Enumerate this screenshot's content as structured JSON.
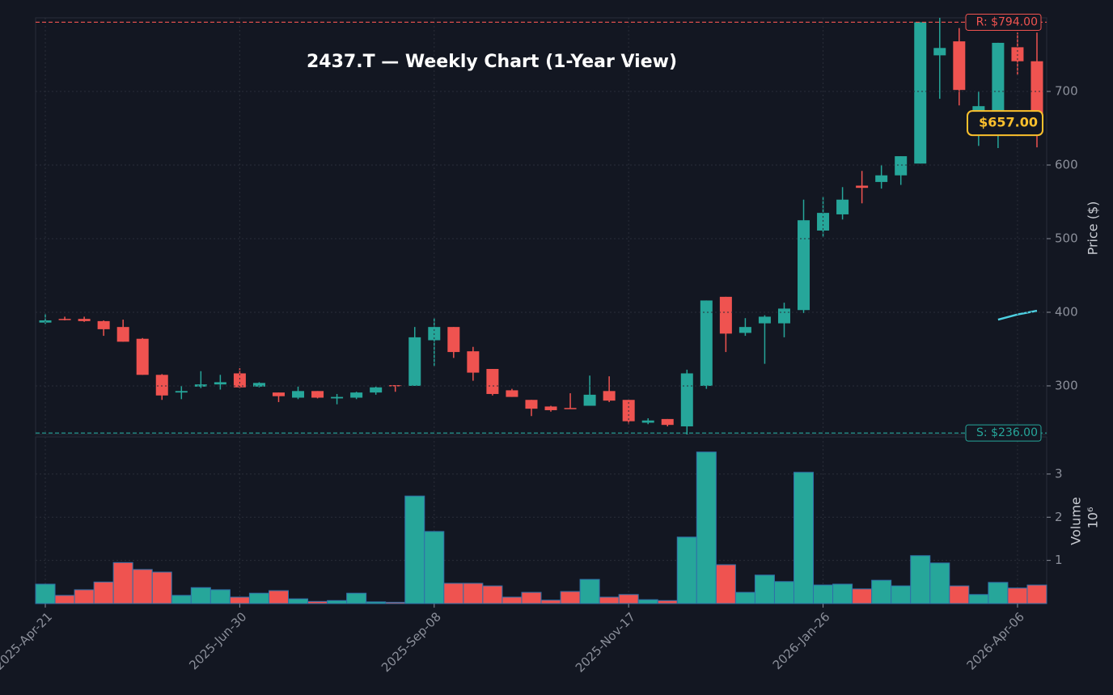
{
  "chart_data": {
    "type": "candlestick",
    "title": "2437.T — Weekly Chart (1-Year View)",
    "categories": [
      "2025-Apr-21",
      null,
      null,
      null,
      null,
      null,
      null,
      null,
      null,
      null,
      "2025-Jun-30",
      null,
      null,
      null,
      null,
      null,
      null,
      null,
      null,
      null,
      "2025-Sep-08",
      null,
      null,
      null,
      null,
      null,
      null,
      null,
      null,
      null,
      "2025-Nov-17",
      null,
      null,
      null,
      null,
      null,
      null,
      null,
      null,
      null,
      "2026-Jan-26",
      null,
      null,
      null,
      null,
      null,
      null,
      null,
      null,
      null,
      "2026-Apr-06",
      null
    ],
    "open": [
      386,
      391,
      391,
      388,
      380,
      364,
      315,
      291,
      299,
      302,
      317,
      299,
      291,
      284,
      293,
      283,
      284,
      291,
      301,
      300,
      362,
      380,
      347,
      323,
      294,
      281,
      272,
      270,
      273,
      293,
      281,
      250,
      255,
      245,
      300,
      421,
      372,
      385,
      385,
      403,
      511,
      533,
      572,
      577,
      586,
      602,
      749,
      768,
      670,
      660,
      760,
      741
    ],
    "high": [
      398,
      394,
      394,
      389,
      390,
      365,
      316,
      300,
      320,
      315,
      324,
      305,
      291,
      299,
      293,
      289,
      292,
      299,
      301,
      380,
      392,
      380,
      353,
      323,
      296,
      281,
      273,
      290,
      314,
      313,
      281,
      256,
      255,
      322,
      416,
      421,
      392,
      396,
      413,
      553,
      557,
      570,
      592,
      600,
      612,
      794,
      800,
      786,
      700,
      766,
      780,
      780
    ],
    "low": [
      384,
      389,
      387,
      368,
      360,
      315,
      281,
      282,
      297,
      295,
      297,
      298,
      278,
      282,
      283,
      275,
      282,
      288,
      292,
      300,
      327,
      338,
      307,
      287,
      285,
      259,
      265,
      269,
      273,
      278,
      248,
      248,
      245,
      234,
      296,
      346,
      368,
      330,
      366,
      399,
      502,
      526,
      548,
      568,
      573,
      602,
      690,
      681,
      626,
      623,
      723,
      624
    ],
    "close": [
      389,
      390,
      388,
      377,
      360,
      315,
      287,
      293,
      302,
      305,
      298,
      304,
      286,
      293,
      284,
      285,
      291,
      298,
      300,
      366,
      380,
      346,
      318,
      289,
      285,
      269,
      267,
      269,
      288,
      280,
      252,
      253,
      247,
      317,
      416,
      371,
      380,
      394,
      405,
      525,
      535,
      553,
      569,
      586,
      612,
      794,
      759,
      702,
      680,
      766,
      741,
      657
    ],
    "up_color": "#26a69a",
    "down_color": "#ef5350",
    "ma": {
      "color": "#4dd0e1",
      "values": [
        null,
        null,
        null,
        null,
        null,
        null,
        null,
        null,
        null,
        null,
        null,
        null,
        null,
        null,
        null,
        null,
        null,
        null,
        null,
        null,
        null,
        null,
        null,
        null,
        null,
        null,
        null,
        null,
        null,
        null,
        null,
        null,
        null,
        null,
        null,
        null,
        null,
        null,
        null,
        null,
        null,
        null,
        null,
        null,
        null,
        null,
        null,
        null,
        null,
        390,
        397,
        402
      ]
    },
    "ylim": [
      234,
      800
    ],
    "yticks": [
      300,
      400,
      500,
      600,
      700
    ],
    "ylabel": "Price ($)",
    "grid": true,
    "levels": [
      {
        "value": 794,
        "label": "R: $794.00",
        "color": "#ef5350"
      },
      {
        "value": 236,
        "label": "S: $236.00",
        "color": "#26a69a"
      }
    ],
    "last": {
      "value": 657,
      "label": "$657.00",
      "color": "#fbc02d"
    },
    "volume": {
      "values": [
        0.45,
        0.19,
        0.32,
        0.5,
        0.95,
        0.79,
        0.73,
        0.19,
        0.37,
        0.32,
        0.15,
        0.24,
        0.3,
        0.11,
        0.05,
        0.07,
        0.24,
        0.04,
        0.03,
        2.49,
        1.67,
        0.47,
        0.47,
        0.41,
        0.15,
        0.26,
        0.08,
        0.28,
        0.56,
        0.15,
        0.21,
        0.09,
        0.07,
        1.54,
        3.51,
        0.9,
        0.26,
        0.66,
        0.51,
        3.04,
        0.43,
        0.45,
        0.34,
        0.54,
        0.41,
        1.11,
        0.94,
        0.41,
        0.21,
        0.49,
        0.36,
        0.43
      ],
      "ylim": [
        0,
        3.86
      ],
      "yticks": [
        1,
        2,
        3
      ],
      "ylabel": "Volume",
      "multiplier": "10⁶"
    }
  }
}
